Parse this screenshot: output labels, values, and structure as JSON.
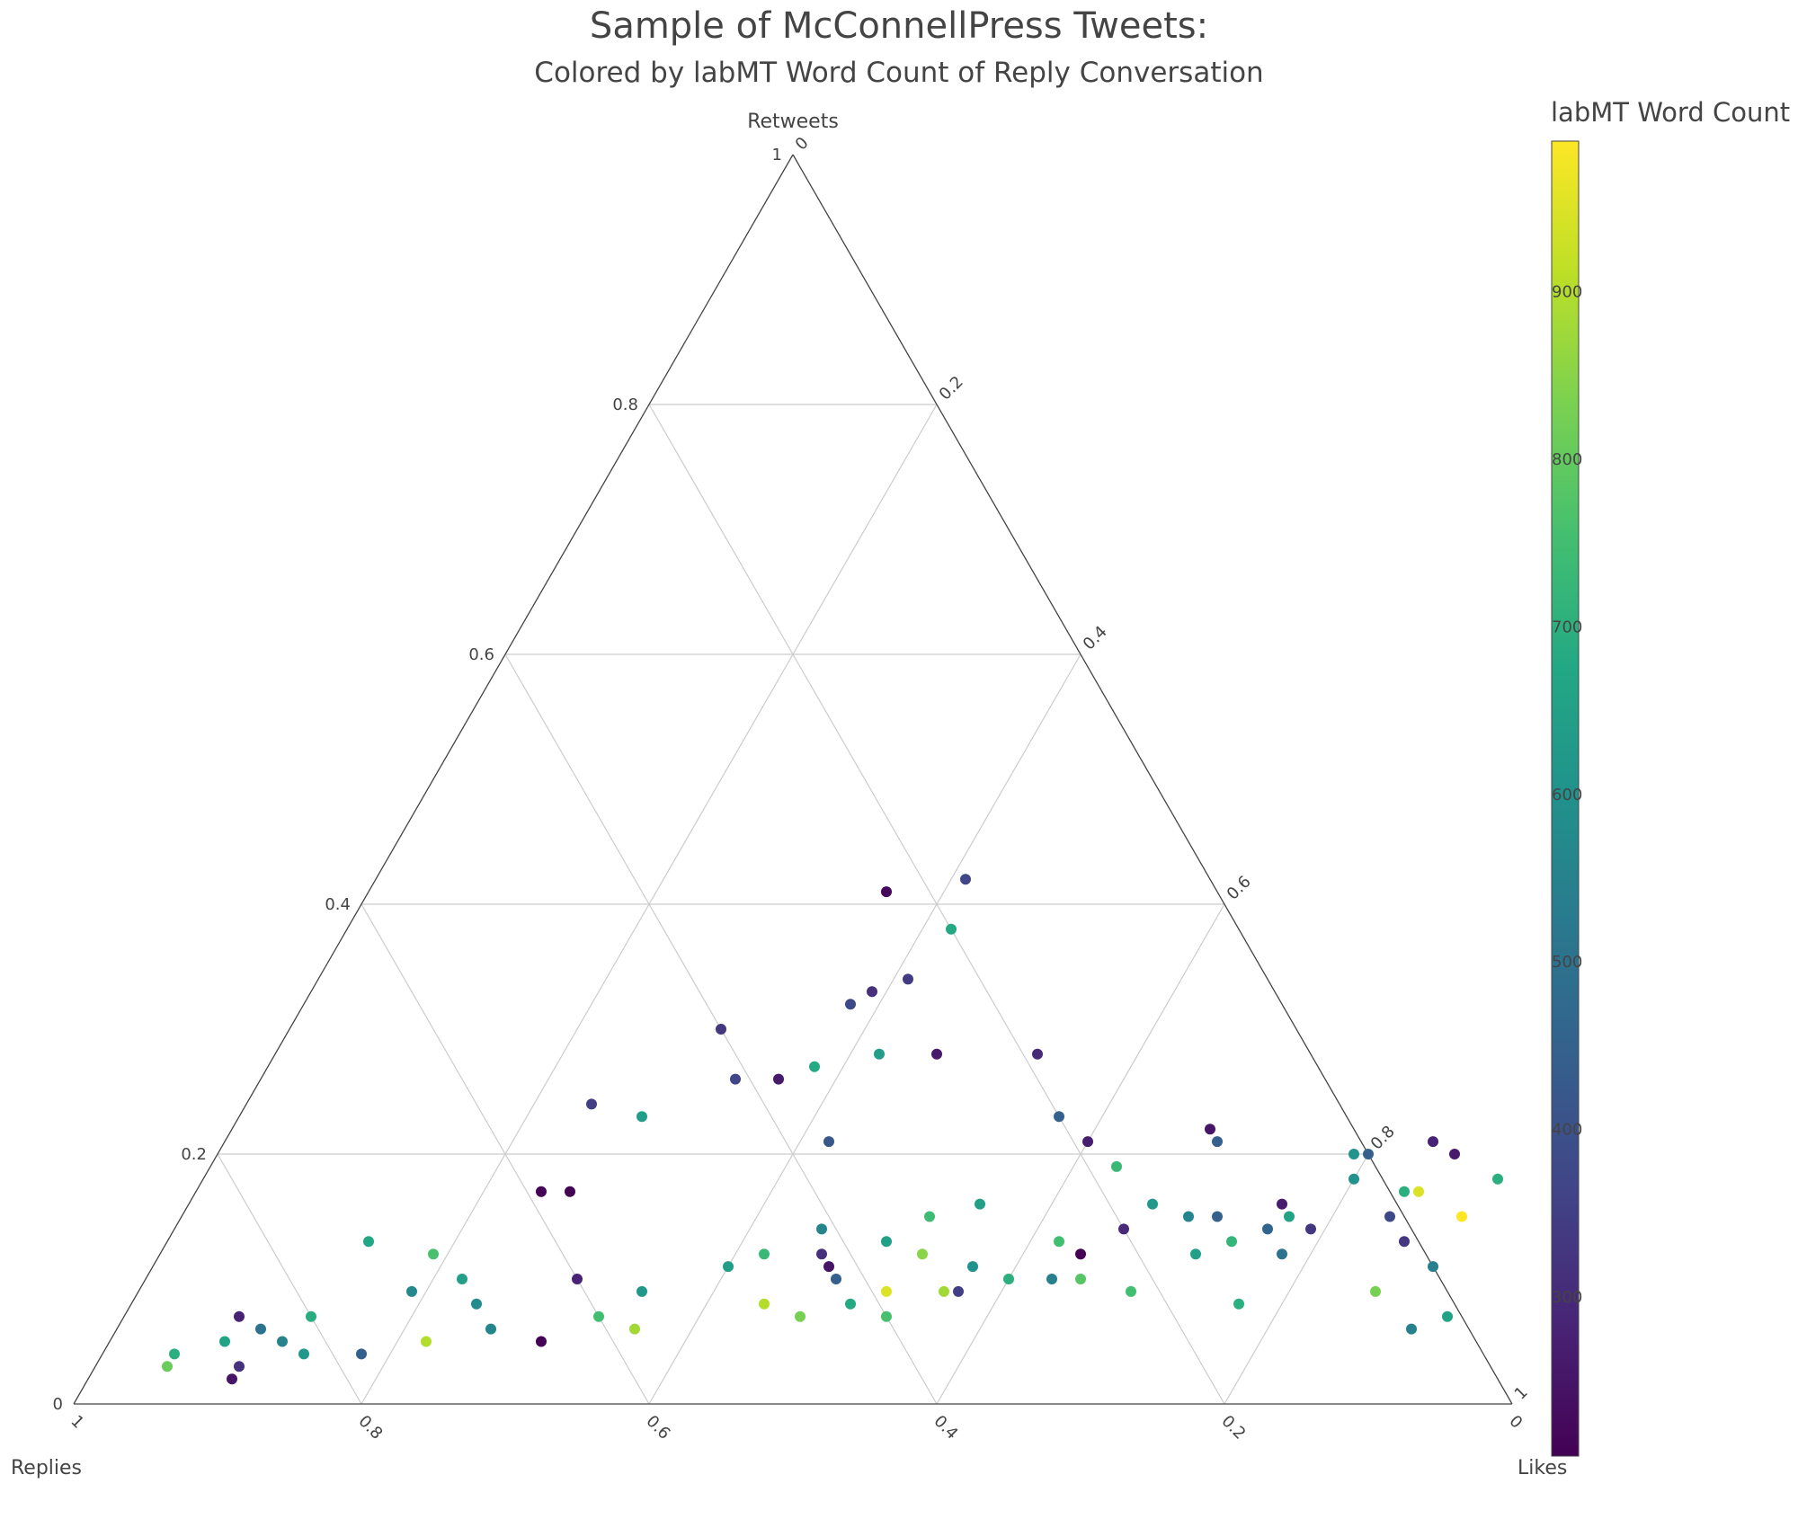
{
  "chart_data": {
    "type": "scatter",
    "subtype": "ternary",
    "title": "Sample of McConnellPress Tweets:",
    "subtitle": "Colored by labMT Word Count of Reply Conversation",
    "axes": {
      "top": {
        "label": "Retweets",
        "ticks": [
          "0",
          "0.2",
          "0.4",
          "0.6",
          "0.8",
          "1"
        ]
      },
      "left": {
        "label": "Replies",
        "ticks": [
          "1",
          "0.8",
          "0.6",
          "0.4",
          "0.2",
          "0"
        ]
      },
      "right": {
        "label": "Likes",
        "ticks": [
          "0",
          "0.2",
          "0.4",
          "0.6",
          "0.8",
          "1"
        ]
      }
    },
    "grid": true,
    "colorbar": {
      "title": "labMT Word Count",
      "colorscale": "Viridis",
      "range": [
        205,
        990
      ],
      "ticks": [
        "300",
        "400",
        "500",
        "600",
        "700",
        "800",
        "900"
      ]
    },
    "point_fields": [
      "retweets",
      "likes",
      "word_count"
    ],
    "points": [
      [
        0.42,
        0.41,
        370
      ],
      [
        0.41,
        0.36,
        220
      ],
      [
        0.38,
        0.42,
        680
      ],
      [
        0.34,
        0.41,
        340
      ],
      [
        0.33,
        0.39,
        310
      ],
      [
        0.32,
        0.38,
        380
      ],
      [
        0.3,
        0.3,
        330
      ],
      [
        0.28,
        0.42,
        640
      ],
      [
        0.28,
        0.46,
        260
      ],
      [
        0.28,
        0.53,
        300
      ],
      [
        0.27,
        0.38,
        680
      ],
      [
        0.26,
        0.33,
        370
      ],
      [
        0.26,
        0.36,
        260
      ],
      [
        0.23,
        0.57,
        450
      ],
      [
        0.22,
        0.68,
        250
      ],
      [
        0.21,
        0.69,
        440
      ],
      [
        0.2,
        0.79,
        610
      ],
      [
        0.24,
        0.24,
        350
      ],
      [
        0.23,
        0.28,
        640
      ],
      [
        0.21,
        0.42,
        420
      ],
      [
        0.19,
        0.63,
        730
      ],
      [
        0.21,
        0.6,
        270
      ],
      [
        0.18,
        0.9,
        700
      ],
      [
        0.17,
        0.26,
        200
      ],
      [
        0.17,
        0.24,
        210
      ],
      [
        0.16,
        0.55,
        650
      ],
      [
        0.15,
        0.72,
        450
      ],
      [
        0.14,
        0.76,
        460
      ],
      [
        0.13,
        0.86,
        330
      ],
      [
        0.11,
        0.89,
        540
      ],
      [
        0.07,
        0.92,
        660
      ],
      [
        0.1,
        0.65,
        780
      ],
      [
        0.09,
        0.57,
        350
      ],
      [
        0.09,
        0.69,
        750
      ],
      [
        0.13,
        0.14,
        670
      ],
      [
        0.12,
        0.19,
        760
      ],
      [
        0.1,
        0.22,
        650
      ],
      [
        0.09,
        0.19,
        570
      ],
      [
        0.07,
        0.13,
        690
      ],
      [
        0.05,
        0.08,
        660
      ],
      [
        0.04,
        0.05,
        700
      ],
      [
        0.03,
        0.05,
        810
      ],
      [
        0.07,
        0.08,
        280
      ],
      [
        0.06,
        0.1,
        500
      ],
      [
        0.05,
        0.12,
        550
      ],
      [
        0.04,
        0.14,
        620
      ],
      [
        0.03,
        0.1,
        320
      ],
      [
        0.02,
        0.1,
        250
      ],
      [
        0.04,
        0.18,
        440
      ],
      [
        0.05,
        0.22,
        900
      ],
      [
        0.08,
        0.24,
        580
      ],
      [
        0.06,
        0.26,
        560
      ],
      [
        0.1,
        0.3,
        280
      ],
      [
        0.09,
        0.35,
        620
      ],
      [
        0.07,
        0.33,
        750
      ],
      [
        0.05,
        0.3,
        200
      ],
      [
        0.06,
        0.36,
        880
      ],
      [
        0.11,
        0.4,
        640
      ],
      [
        0.12,
        0.42,
        730
      ],
      [
        0.14,
        0.45,
        560
      ],
      [
        0.12,
        0.46,
        310
      ],
      [
        0.11,
        0.47,
        250
      ],
      [
        0.1,
        0.48,
        440
      ],
      [
        0.08,
        0.44,
        900
      ],
      [
        0.07,
        0.47,
        830
      ],
      [
        0.08,
        0.5,
        680
      ],
      [
        0.13,
        0.5,
        650
      ],
      [
        0.15,
        0.52,
        740
      ],
      [
        0.12,
        0.53,
        850
      ],
      [
        0.09,
        0.56,
        880
      ],
      [
        0.09,
        0.52,
        950
      ],
      [
        0.07,
        0.53,
        760
      ],
      [
        0.11,
        0.57,
        600
      ],
      [
        0.1,
        0.6,
        700
      ],
      [
        0.13,
        0.62,
        750
      ],
      [
        0.12,
        0.64,
        200
      ],
      [
        0.1,
        0.63,
        540
      ],
      [
        0.14,
        0.66,
        300
      ],
      [
        0.16,
        0.67,
        620
      ],
      [
        0.15,
        0.7,
        560
      ],
      [
        0.12,
        0.72,
        650
      ],
      [
        0.13,
        0.74,
        720
      ],
      [
        0.15,
        0.77,
        660
      ],
      [
        0.14,
        0.79,
        330
      ],
      [
        0.16,
        0.76,
        270
      ],
      [
        0.18,
        0.8,
        600
      ],
      [
        0.2,
        0.8,
        450
      ],
      [
        0.21,
        0.84,
        280
      ],
      [
        0.2,
        0.86,
        260
      ],
      [
        0.17,
        0.84,
        700
      ],
      [
        0.17,
        0.85,
        950
      ],
      [
        0.15,
        0.84,
        380
      ],
      [
        0.15,
        0.89,
        990
      ],
      [
        0.12,
        0.78,
        500
      ],
      [
        0.08,
        0.77,
        700
      ],
      [
        0.09,
        0.86,
        830
      ],
      [
        0.06,
        0.9,
        550
      ]
    ]
  }
}
